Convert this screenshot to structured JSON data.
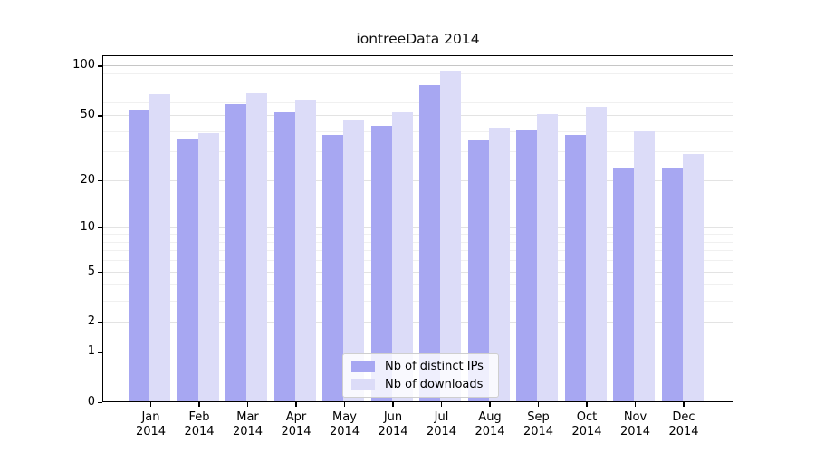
{
  "chart_data": {
    "type": "bar",
    "title": "iontreeData 2014",
    "x_year": "2014",
    "categories": [
      "Jan",
      "Feb",
      "Mar",
      "Apr",
      "May",
      "Jun",
      "Jul",
      "Aug",
      "Sep",
      "Oct",
      "Nov",
      "Dec"
    ],
    "series": [
      {
        "name": "Nb of distinct IPs",
        "color": "#a7a7f2",
        "values": [
          54,
          36,
          58,
          52,
          38,
          43,
          76,
          35,
          41,
          38,
          24,
          24
        ]
      },
      {
        "name": "Nb of downloads",
        "color": "#dcdcf8",
        "values": [
          67,
          39,
          68,
          62,
          47,
          52,
          93,
          42,
          51,
          56,
          40,
          29
        ]
      }
    ],
    "y_scale": "symlog-log10(1+v)",
    "ylim": [
      0,
      115
    ],
    "y_ticks": [
      0,
      1,
      2,
      5,
      10,
      20,
      50,
      100
    ],
    "y_gridlines_minor": [
      3,
      4,
      6,
      7,
      8,
      9,
      30,
      40,
      60,
      70,
      80,
      90
    ],
    "y_gridlines_labeled": [
      1,
      2,
      5,
      10,
      20,
      50
    ],
    "y_gridline_top": 100,
    "legend_position": "lower center",
    "grid": "horizontal",
    "colors": {
      "frame": "#000000",
      "grid_minor": "#f0f0f0",
      "grid_labeled": "#e3e3e3",
      "grid_top": "#c6c6c6",
      "text": "#111111"
    }
  }
}
